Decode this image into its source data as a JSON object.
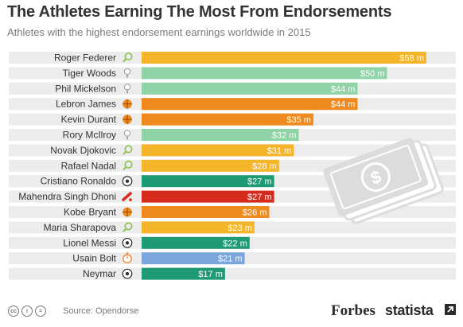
{
  "header": {
    "title": "The Athletes Earning The Most From Endorsements",
    "subtitle": "Athletes with the highest endorsement earnings worldwide in 2015"
  },
  "footer": {
    "source": "Source: Opendorse",
    "brand_forbes": "Forbes",
    "brand_statista": "statista",
    "license_icons": [
      "cc",
      "by",
      "="
    ]
  },
  "colors": {
    "golf": "#8fd3a6",
    "basketball": "#ef8a1f",
    "tennis": "#f5b52a",
    "football": "#1e9a74",
    "cricket": "#d62a1c",
    "athletics": "#7aa6dc",
    "row_band": "#ececec",
    "money_illustration": "#dcdcdc"
  },
  "chart_data": {
    "type": "bar",
    "orientation": "horizontal",
    "unit": "$ m",
    "categories": [
      "Roger Federer",
      "Tiger Woods",
      "Phil Mickelson",
      "Lebron James",
      "Kevin Durant",
      "Rory McIlroy",
      "Novak Djokovic",
      "Rafael Nadal",
      "Cristiano Ronaldo",
      "Mahendra Singh Dhoni",
      "Kobe Bryant",
      "Maria Sharapova",
      "Lionel Messi",
      "Usain Bolt",
      "Neymar"
    ],
    "values": [
      58,
      50,
      44,
      44,
      35,
      32,
      31,
      28,
      27,
      27,
      26,
      23,
      22,
      21,
      17
    ],
    "value_labels": [
      "$58 m",
      "$50 m",
      "$44 m",
      "$44 m",
      "$35 m",
      "$32 m",
      "$31 m",
      "$28 m",
      "$27 m",
      "$27 m",
      "$26 m",
      "$23 m",
      "$22 m",
      "$21 m",
      "$17 m"
    ],
    "sports": [
      "tennis",
      "golf",
      "golf",
      "basketball",
      "basketball",
      "golf",
      "tennis",
      "tennis",
      "football",
      "cricket",
      "basketball",
      "tennis",
      "football",
      "athletics",
      "football"
    ],
    "sport_icons": [
      "tennis-racket-icon",
      "golf-ball-icon",
      "golf-ball-icon",
      "basketball-icon",
      "basketball-icon",
      "golf-ball-icon",
      "tennis-racket-icon",
      "tennis-racket-icon",
      "football-icon",
      "cricket-bat-icon",
      "basketball-icon",
      "tennis-racket-icon",
      "football-icon",
      "stopwatch-icon",
      "football-icon"
    ],
    "xlim": [
      0,
      60
    ],
    "grid": false,
    "legend": "none"
  }
}
